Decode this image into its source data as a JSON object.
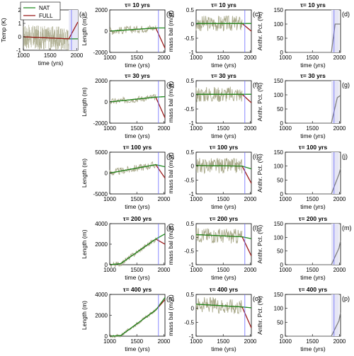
{
  "colors": {
    "nat": "#1e8b1e",
    "full": "#9b1b1b",
    "noise": "#a9a98a",
    "fill": "#d3d3c0",
    "anthr": "#808080",
    "marker": "#6a6aff"
  },
  "legend": {
    "nat": "NAT",
    "full": "FULL"
  },
  "xlabel": "time (yrs)",
  "xticks": [
    "1000",
    "1500",
    "2000"
  ],
  "row_titles": [
    "τ= 10 yrs",
    "τ= 30 yrs",
    "τ= 100 yrs",
    "τ= 200 yrs",
    "τ= 400 yrs"
  ],
  "panels": {
    "temp": {
      "letter": "(a)",
      "ylabel": "Temp (K)",
      "yticks": [
        "2",
        "1",
        "0",
        "-1"
      ]
    },
    "length": {
      "letters": [
        "(b)",
        "(e)",
        "(h)",
        "(k)",
        "(n)"
      ],
      "ylabel": "Length (m)",
      "yticks": [
        [
          "2000",
          "0",
          "-2000"
        ],
        [
          "2000",
          "0",
          "-2000"
        ],
        [
          "5000",
          "0",
          "-5000"
        ],
        [
          "4000",
          "2000",
          "0"
        ],
        [
          "4000",
          "2000",
          "0"
        ]
      ]
    },
    "massbal": {
      "letters": [
        "(c)",
        "(f)",
        "(i)",
        "(l)",
        "(o)"
      ],
      "ylabel": "mass bal (m/yr)",
      "yticks": [
        "0.5",
        "0",
        "-0.5",
        "-1"
      ]
    },
    "anthr": {
      "letters": [
        "(d)",
        "(g)",
        "(j)",
        "(m)",
        "(p)"
      ],
      "ylabel": "Anthr. Pct. (%)",
      "yticks": [
        "150",
        "100",
        "50",
        "0"
      ]
    }
  },
  "chart_data": [
    {
      "type": "line",
      "panel": "(a)",
      "ylabel": "Temp (K)",
      "xlabel": "time (yrs)",
      "xlim": [
        1000,
        2020
      ],
      "ylim": [
        -1,
        2
      ],
      "series": [
        {
          "name": "NAT",
          "x": [
            1000,
            1850,
            2020
          ],
          "y": [
            0,
            -0.15,
            -0.15
          ]
        },
        {
          "name": "FULL",
          "x": [
            1000,
            1850,
            2020
          ],
          "y": [
            0,
            -0.15,
            1.1
          ]
        }
      ]
    },
    {
      "type": "line",
      "panel": "(b)",
      "title": "τ= 10 yrs",
      "ylabel": "Length (m)",
      "xlabel": "time (yrs)",
      "xlim": [
        1000,
        2020
      ],
      "ylim": [
        -2000,
        2000
      ],
      "series": [
        {
          "name": "NAT",
          "x": [
            1000,
            1850,
            2020
          ],
          "y": [
            0,
            300,
            300
          ]
        },
        {
          "name": "FULL",
          "x": [
            1000,
            1850,
            2020
          ],
          "y": [
            0,
            300,
            -1600
          ]
        }
      ]
    },
    {
      "type": "line",
      "panel": "(c)",
      "title": "τ= 10 yrs",
      "ylabel": "mass bal (m/yr)",
      "xlabel": "time (yrs)",
      "xlim": [
        1000,
        2020
      ],
      "ylim": [
        -1,
        0.5
      ],
      "series": [
        {
          "name": "NAT",
          "x": [
            1000,
            1850,
            2020
          ],
          "y": [
            0.02,
            0.02,
            0.02
          ]
        },
        {
          "name": "FULL",
          "x": [
            1000,
            1850,
            2020
          ],
          "y": [
            0.02,
            0.02,
            -0.25
          ]
        }
      ]
    },
    {
      "type": "line",
      "panel": "(d)",
      "title": "τ= 10 yrs",
      "ylabel": "Anthr. Pct. (%)",
      "xlabel": "time (yrs)",
      "xlim": [
        1000,
        2020
      ],
      "ylim": [
        0,
        150
      ],
      "series": [
        {
          "name": "anthropogenic",
          "x": [
            1000,
            1850,
            1920,
            2020
          ],
          "y": [
            0,
            0,
            100,
            100
          ]
        }
      ]
    },
    {
      "type": "line",
      "panel": "(e)",
      "title": "τ= 30 yrs",
      "ylabel": "Length (m)",
      "xlabel": "time (yrs)",
      "xlim": [
        1000,
        2020
      ],
      "ylim": [
        -2000,
        2000
      ],
      "series": [
        {
          "name": "NAT",
          "x": [
            1000,
            1850,
            2020
          ],
          "y": [
            0,
            450,
            500
          ]
        },
        {
          "name": "FULL",
          "x": [
            1000,
            1850,
            2020
          ],
          "y": [
            0,
            450,
            -1500
          ]
        }
      ]
    },
    {
      "type": "line",
      "panel": "(f)",
      "title": "τ= 30 yrs",
      "ylabel": "mass bal (m/yr)",
      "xlabel": "time (yrs)",
      "xlim": [
        1000,
        2020
      ],
      "ylim": [
        -1,
        0.5
      ],
      "series": [
        {
          "name": "NAT",
          "x": [
            1000,
            1850,
            2020
          ],
          "y": [
            0.02,
            0.02,
            0.02
          ]
        },
        {
          "name": "FULL",
          "x": [
            1000,
            1850,
            2020
          ],
          "y": [
            0.02,
            0.02,
            -0.28
          ]
        }
      ]
    },
    {
      "type": "line",
      "panel": "(g)",
      "title": "τ= 30 yrs",
      "ylabel": "Anthr. Pct. (%)",
      "xlabel": "time (yrs)",
      "xlim": [
        1000,
        2020
      ],
      "ylim": [
        0,
        150
      ],
      "series": [
        {
          "name": "anthropogenic",
          "x": [
            1000,
            1850,
            1960,
            2020
          ],
          "y": [
            0,
            0,
            90,
            98
          ]
        }
      ]
    },
    {
      "type": "line",
      "panel": "(h)",
      "title": "τ= 100 yrs",
      "ylabel": "Length (m)",
      "xlabel": "time (yrs)",
      "xlim": [
        1000,
        2020
      ],
      "ylim": [
        -5000,
        5000
      ],
      "series": [
        {
          "name": "NAT",
          "x": [
            1000,
            1850,
            2020
          ],
          "y": [
            0,
            2000,
            1500
          ]
        },
        {
          "name": "FULL",
          "x": [
            1000,
            1850,
            2020
          ],
          "y": [
            0,
            2000,
            -1200
          ]
        }
      ]
    },
    {
      "type": "line",
      "panel": "(i)",
      "title": "τ= 100 yrs",
      "ylabel": "mass bal (m/yr)",
      "xlabel": "time (yrs)",
      "xlim": [
        1000,
        2020
      ],
      "ylim": [
        -1,
        0.5
      ],
      "series": [
        {
          "name": "NAT",
          "x": [
            1000,
            1850,
            2020
          ],
          "y": [
            0.02,
            0.0,
            -0.1
          ]
        },
        {
          "name": "FULL",
          "x": [
            1000,
            1850,
            2020
          ],
          "y": [
            0.02,
            0.0,
            -0.62
          ]
        }
      ]
    },
    {
      "type": "line",
      "panel": "(j)",
      "title": "τ= 100 yrs",
      "ylabel": "Anthr. Pct. (%)",
      "xlabel": "time (yrs)",
      "xlim": [
        1000,
        2020
      ],
      "ylim": [
        0,
        150
      ],
      "series": [
        {
          "name": "anthropogenic",
          "x": [
            1000,
            1850,
            1990,
            2020
          ],
          "y": [
            0,
            0,
            70,
            92
          ]
        }
      ]
    },
    {
      "type": "line",
      "panel": "(k)",
      "title": "τ= 200 yrs",
      "ylabel": "Length (m)",
      "xlabel": "time (yrs)",
      "xlim": [
        1000,
        2020
      ],
      "ylim": [
        0,
        4000
      ],
      "series": [
        {
          "name": "NAT",
          "x": [
            1000,
            1200,
            1850,
            2020
          ],
          "y": [
            0,
            100,
            2500,
            3000
          ]
        },
        {
          "name": "FULL",
          "x": [
            1000,
            1200,
            1850,
            2020
          ],
          "y": [
            0,
            100,
            2500,
            2000
          ]
        }
      ]
    },
    {
      "type": "line",
      "panel": "(l)",
      "title": "τ= 200 yrs",
      "ylabel": "mass bal (m/yr)",
      "xlabel": "time (yrs)",
      "xlim": [
        1000,
        2020
      ],
      "ylim": [
        -1,
        0.5
      ],
      "series": [
        {
          "name": "NAT",
          "x": [
            1000,
            1850,
            2020
          ],
          "y": [
            0.1,
            0.02,
            -0.05
          ]
        },
        {
          "name": "FULL",
          "x": [
            1000,
            1850,
            2020
          ],
          "y": [
            0.1,
            0.02,
            -0.68
          ]
        }
      ]
    },
    {
      "type": "line",
      "panel": "(m)",
      "title": "τ= 200 yrs",
      "ylabel": "Anthr. Pct. (%)",
      "xlabel": "time (yrs)",
      "xlim": [
        1000,
        2020
      ],
      "ylim": [
        0,
        150
      ],
      "series": [
        {
          "name": "anthropogenic",
          "x": [
            1000,
            1850,
            1990,
            2020
          ],
          "y": [
            0,
            0,
            60,
            88
          ]
        }
      ]
    },
    {
      "type": "line",
      "panel": "(n)",
      "title": "τ= 400 yrs",
      "ylabel": "Length (m)",
      "xlabel": "time (yrs)",
      "xlim": [
        1000,
        2020
      ],
      "ylim": [
        0,
        4000
      ],
      "series": [
        {
          "name": "NAT",
          "x": [
            1000,
            1200,
            1850,
            2020
          ],
          "y": [
            0,
            50,
            2500,
            3700
          ]
        },
        {
          "name": "FULL",
          "x": [
            1000,
            1200,
            1850,
            2020
          ],
          "y": [
            0,
            50,
            2500,
            3500
          ]
        }
      ]
    },
    {
      "type": "line",
      "panel": "(o)",
      "title": "τ= 400 yrs",
      "ylabel": "mass bal (m/yr)",
      "xlabel": "time (yrs)",
      "xlim": [
        1000,
        2020
      ],
      "ylim": [
        -1,
        0.5
      ],
      "series": [
        {
          "name": "NAT",
          "x": [
            1000,
            1850,
            2020
          ],
          "y": [
            0.15,
            0.05,
            0.02
          ]
        },
        {
          "name": "FULL",
          "x": [
            1000,
            1850,
            2020
          ],
          "y": [
            0.15,
            0.05,
            -0.7
          ]
        }
      ]
    },
    {
      "type": "line",
      "panel": "(p)",
      "title": "τ= 400 yrs",
      "ylabel": "Anthr. Pct. (%)",
      "xlabel": "time (yrs)",
      "xlim": [
        1000,
        2020
      ],
      "ylim": [
        0,
        150
      ],
      "series": [
        {
          "name": "anthropogenic",
          "x": [
            1000,
            1850,
            1990,
            2020
          ],
          "y": [
            0,
            0,
            55,
            85
          ]
        }
      ]
    }
  ]
}
